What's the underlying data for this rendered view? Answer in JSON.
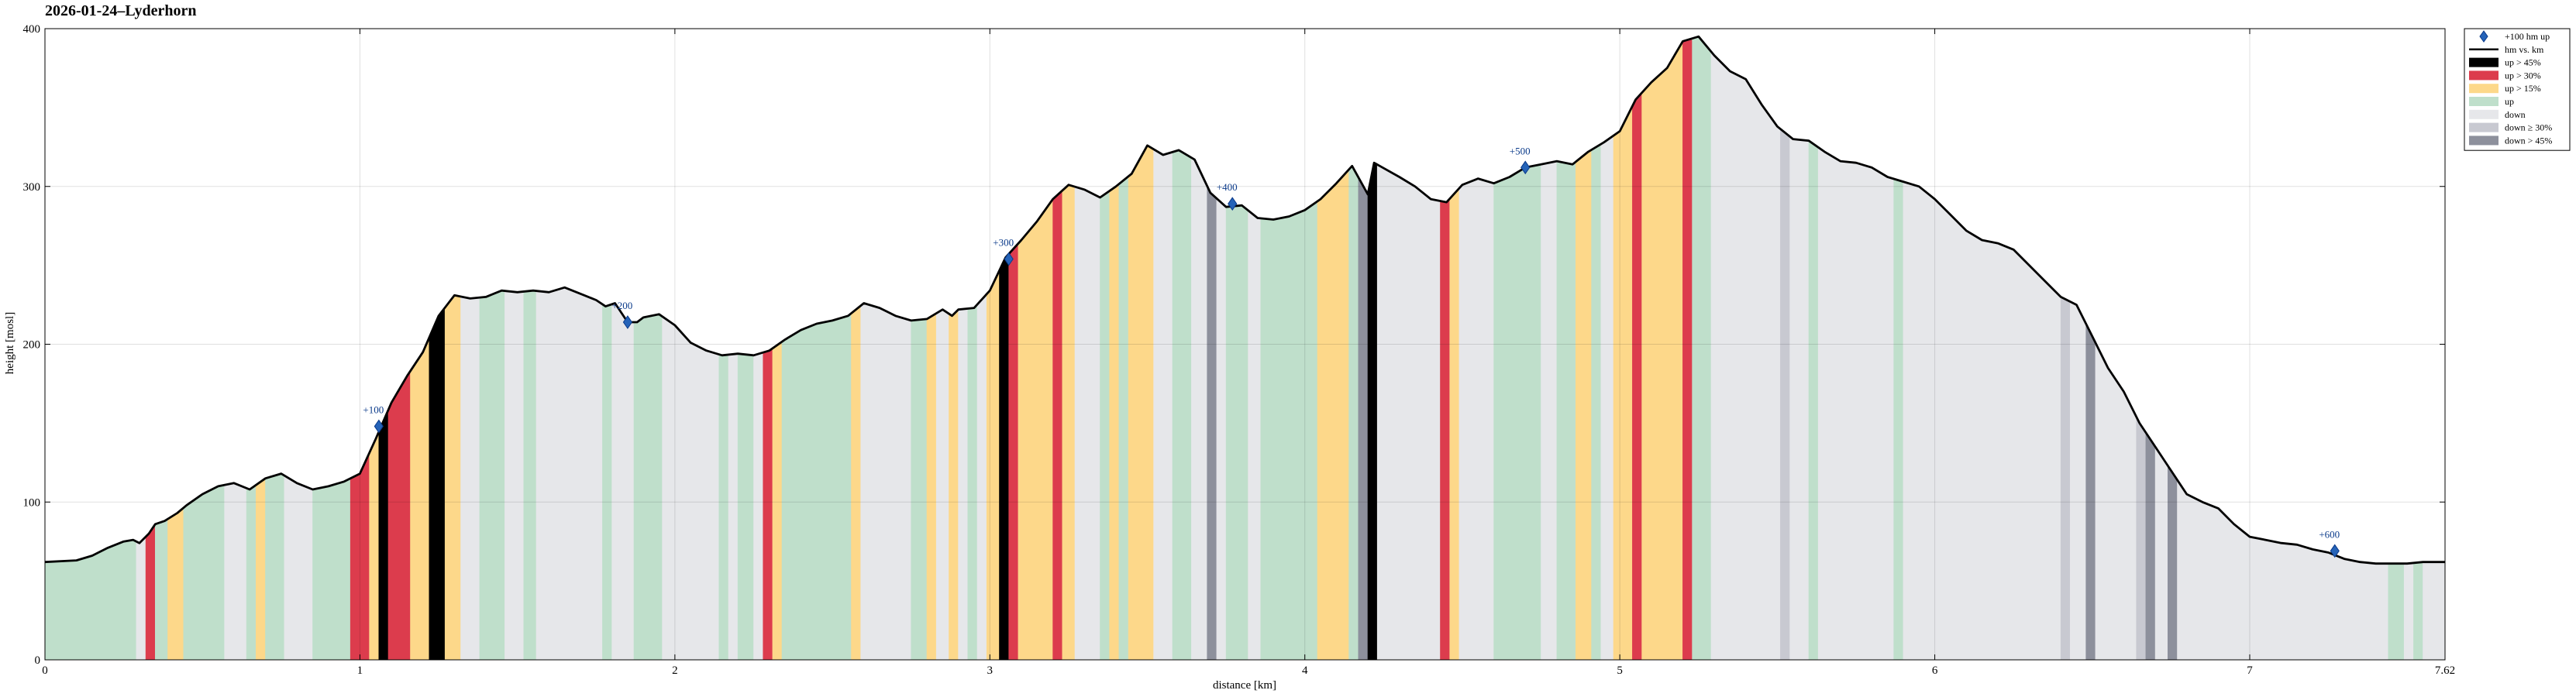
{
  "chart_data": {
    "type": "area",
    "title": "2026-01-24–Lyderhorn",
    "xlabel": "distance [km]",
    "ylabel": "height [mosl]",
    "xlim": [
      0,
      7.62
    ],
    "ylim": [
      0,
      400
    ],
    "xticks": [
      0,
      1,
      2,
      3,
      4,
      5,
      6,
      7,
      7.62
    ],
    "xtick_labels": [
      "0",
      "1",
      "2",
      "3",
      "4",
      "5",
      "6",
      "7",
      "7.62"
    ],
    "yticks": [
      0,
      100,
      200,
      300,
      400
    ],
    "ytick_labels": [
      "0",
      "100",
      "200",
      "300",
      "400"
    ],
    "grid": true,
    "legend_placement": "top-right outside",
    "legend": [
      {
        "label": "+100 hm up",
        "kind": "marker",
        "color": "#2563b8"
      },
      {
        "label": "hm vs. km",
        "kind": "line",
        "color": "#000000"
      },
      {
        "label": "up  > 45%",
        "kind": "patch",
        "color": "#000000"
      },
      {
        "label": "up  > 30%",
        "kind": "patch",
        "color": "#dc3c4d"
      },
      {
        "label": "up  > 15%",
        "kind": "patch",
        "color": "#fdd88a"
      },
      {
        "label": "up",
        "kind": "patch",
        "color": "#bfdfcb"
      },
      {
        "label": "down",
        "kind": "patch",
        "color": "#e6e7ea"
      },
      {
        "label": "down  ≥ 30%",
        "kind": "patch",
        "color": "#c8c9d1"
      },
      {
        "label": "down  > 45%",
        "kind": "patch",
        "color": "#8d909c"
      }
    ],
    "profile": [
      [
        0.0,
        62
      ],
      [
        0.1,
        63
      ],
      [
        0.15,
        66
      ],
      [
        0.2,
        71
      ],
      [
        0.25,
        75
      ],
      [
        0.28,
        76
      ],
      [
        0.3,
        74
      ],
      [
        0.33,
        80
      ],
      [
        0.35,
        86
      ],
      [
        0.38,
        88
      ],
      [
        0.42,
        93
      ],
      [
        0.45,
        98
      ],
      [
        0.5,
        105
      ],
      [
        0.55,
        110
      ],
      [
        0.6,
        112
      ],
      [
        0.65,
        108
      ],
      [
        0.7,
        115
      ],
      [
        0.75,
        118
      ],
      [
        0.8,
        112
      ],
      [
        0.85,
        108
      ],
      [
        0.9,
        110
      ],
      [
        0.95,
        113
      ],
      [
        1.0,
        118
      ],
      [
        1.05,
        140
      ],
      [
        1.1,
        163
      ],
      [
        1.15,
        180
      ],
      [
        1.2,
        195
      ],
      [
        1.25,
        218
      ],
      [
        1.3,
        231
      ],
      [
        1.35,
        229
      ],
      [
        1.4,
        230
      ],
      [
        1.45,
        234
      ],
      [
        1.5,
        233
      ],
      [
        1.55,
        234
      ],
      [
        1.6,
        233
      ],
      [
        1.65,
        236
      ],
      [
        1.7,
        232
      ],
      [
        1.75,
        228
      ],
      [
        1.78,
        224
      ],
      [
        1.81,
        226
      ],
      [
        1.85,
        214
      ],
      [
        1.88,
        214
      ],
      [
        1.9,
        217
      ],
      [
        1.95,
        219
      ],
      [
        2.0,
        212
      ],
      [
        2.05,
        201
      ],
      [
        2.1,
        196
      ],
      [
        2.15,
        193
      ],
      [
        2.2,
        194
      ],
      [
        2.25,
        193
      ],
      [
        2.3,
        196
      ],
      [
        2.35,
        203
      ],
      [
        2.4,
        209
      ],
      [
        2.45,
        213
      ],
      [
        2.5,
        215
      ],
      [
        2.55,
        218
      ],
      [
        2.6,
        226
      ],
      [
        2.65,
        223
      ],
      [
        2.7,
        218
      ],
      [
        2.75,
        215
      ],
      [
        2.8,
        216
      ],
      [
        2.85,
        222
      ],
      [
        2.88,
        218
      ],
      [
        2.9,
        222
      ],
      [
        2.95,
        223
      ],
      [
        3.0,
        234
      ],
      [
        3.05,
        255
      ],
      [
        3.1,
        266
      ],
      [
        3.15,
        278
      ],
      [
        3.2,
        292
      ],
      [
        3.25,
        301
      ],
      [
        3.3,
        298
      ],
      [
        3.35,
        293
      ],
      [
        3.4,
        300
      ],
      [
        3.45,
        308
      ],
      [
        3.5,
        326
      ],
      [
        3.55,
        320
      ],
      [
        3.6,
        323
      ],
      [
        3.65,
        317
      ],
      [
        3.7,
        296
      ],
      [
        3.75,
        287
      ],
      [
        3.8,
        288
      ],
      [
        3.85,
        280
      ],
      [
        3.9,
        279
      ],
      [
        3.95,
        281
      ],
      [
        4.0,
        285
      ],
      [
        4.05,
        292
      ],
      [
        4.1,
        302
      ],
      [
        4.15,
        313
      ],
      [
        4.2,
        295
      ],
      [
        4.22,
        315
      ],
      [
        4.3,
        306
      ],
      [
        4.35,
        300
      ],
      [
        4.4,
        292
      ],
      [
        4.45,
        290
      ],
      [
        4.5,
        301
      ],
      [
        4.55,
        305
      ],
      [
        4.6,
        302
      ],
      [
        4.65,
        306
      ],
      [
        4.7,
        312
      ],
      [
        4.75,
        314
      ],
      [
        4.8,
        316
      ],
      [
        4.85,
        314
      ],
      [
        4.9,
        322
      ],
      [
        4.95,
        328
      ],
      [
        5.0,
        335
      ],
      [
        5.05,
        355
      ],
      [
        5.1,
        366
      ],
      [
        5.15,
        375
      ],
      [
        5.2,
        392
      ],
      [
        5.25,
        395
      ],
      [
        5.3,
        383
      ],
      [
        5.35,
        373
      ],
      [
        5.4,
        368
      ],
      [
        5.45,
        352
      ],
      [
        5.5,
        338
      ],
      [
        5.55,
        330
      ],
      [
        5.6,
        329
      ],
      [
        5.65,
        322
      ],
      [
        5.7,
        316
      ],
      [
        5.75,
        315
      ],
      [
        5.8,
        312
      ],
      [
        5.85,
        306
      ],
      [
        5.9,
        303
      ],
      [
        5.95,
        300
      ],
      [
        6.0,
        292
      ],
      [
        6.05,
        282
      ],
      [
        6.1,
        272
      ],
      [
        6.15,
        266
      ],
      [
        6.2,
        264
      ],
      [
        6.25,
        260
      ],
      [
        6.3,
        250
      ],
      [
        6.35,
        240
      ],
      [
        6.4,
        230
      ],
      [
        6.45,
        225
      ],
      [
        6.5,
        205
      ],
      [
        6.55,
        185
      ],
      [
        6.6,
        170
      ],
      [
        6.65,
        150
      ],
      [
        6.7,
        135
      ],
      [
        6.75,
        120
      ],
      [
        6.8,
        105
      ],
      [
        6.85,
        100
      ],
      [
        6.9,
        96
      ],
      [
        6.95,
        86
      ],
      [
        7.0,
        78
      ],
      [
        7.05,
        76
      ],
      [
        7.1,
        74
      ],
      [
        7.15,
        73
      ],
      [
        7.2,
        70
      ],
      [
        7.25,
        68
      ],
      [
        7.3,
        64
      ],
      [
        7.35,
        62
      ],
      [
        7.4,
        61
      ],
      [
        7.45,
        61
      ],
      [
        7.5,
        61
      ],
      [
        7.55,
        62
      ],
      [
        7.62,
        62
      ]
    ],
    "bands": [
      {
        "x0": 0.0,
        "x1": 0.29,
        "cls": "up"
      },
      {
        "x0": 0.29,
        "x1": 0.32,
        "cls": "down"
      },
      {
        "x0": 0.32,
        "x1": 0.35,
        "cls": "up30"
      },
      {
        "x0": 0.35,
        "x1": 0.39,
        "cls": "up"
      },
      {
        "x0": 0.39,
        "x1": 0.44,
        "cls": "up15"
      },
      {
        "x0": 0.44,
        "x1": 0.57,
        "cls": "up"
      },
      {
        "x0": 0.57,
        "x1": 0.64,
        "cls": "down"
      },
      {
        "x0": 0.64,
        "x1": 0.67,
        "cls": "up"
      },
      {
        "x0": 0.67,
        "x1": 0.7,
        "cls": "up15"
      },
      {
        "x0": 0.7,
        "x1": 0.76,
        "cls": "up"
      },
      {
        "x0": 0.76,
        "x1": 0.85,
        "cls": "down"
      },
      {
        "x0": 0.85,
        "x1": 0.97,
        "cls": "up"
      },
      {
        "x0": 0.97,
        "x1": 1.03,
        "cls": "up30"
      },
      {
        "x0": 1.03,
        "x1": 1.06,
        "cls": "up15"
      },
      {
        "x0": 1.06,
        "x1": 1.09,
        "cls": "up45"
      },
      {
        "x0": 1.09,
        "x1": 1.16,
        "cls": "up30"
      },
      {
        "x0": 1.16,
        "x1": 1.22,
        "cls": "up15"
      },
      {
        "x0": 1.22,
        "x1": 1.27,
        "cls": "up45"
      },
      {
        "x0": 1.27,
        "x1": 1.32,
        "cls": "up15"
      },
      {
        "x0": 1.32,
        "x1": 1.38,
        "cls": "down"
      },
      {
        "x0": 1.38,
        "x1": 1.46,
        "cls": "up"
      },
      {
        "x0": 1.46,
        "x1": 1.52,
        "cls": "down"
      },
      {
        "x0": 1.52,
        "x1": 1.56,
        "cls": "up"
      },
      {
        "x0": 1.56,
        "x1": 1.77,
        "cls": "down"
      },
      {
        "x0": 1.77,
        "x1": 1.8,
        "cls": "up"
      },
      {
        "x0": 1.8,
        "x1": 1.87,
        "cls": "down"
      },
      {
        "x0": 1.87,
        "x1": 1.96,
        "cls": "up"
      },
      {
        "x0": 1.96,
        "x1": 2.14,
        "cls": "down"
      },
      {
        "x0": 2.14,
        "x1": 2.17,
        "cls": "up"
      },
      {
        "x0": 2.17,
        "x1": 2.2,
        "cls": "down"
      },
      {
        "x0": 2.2,
        "x1": 2.25,
        "cls": "up"
      },
      {
        "x0": 2.25,
        "x1": 2.28,
        "cls": "down"
      },
      {
        "x0": 2.28,
        "x1": 2.31,
        "cls": "up30"
      },
      {
        "x0": 2.31,
        "x1": 2.34,
        "cls": "up15"
      },
      {
        "x0": 2.34,
        "x1": 2.56,
        "cls": "up"
      },
      {
        "x0": 2.56,
        "x1": 2.59,
        "cls": "up15"
      },
      {
        "x0": 2.59,
        "x1": 2.75,
        "cls": "down"
      },
      {
        "x0": 2.75,
        "x1": 2.8,
        "cls": "up"
      },
      {
        "x0": 2.8,
        "x1": 2.83,
        "cls": "up15"
      },
      {
        "x0": 2.83,
        "x1": 2.87,
        "cls": "down"
      },
      {
        "x0": 2.87,
        "x1": 2.9,
        "cls": "up15"
      },
      {
        "x0": 2.9,
        "x1": 2.93,
        "cls": "down"
      },
      {
        "x0": 2.93,
        "x1": 2.96,
        "cls": "up"
      },
      {
        "x0": 2.96,
        "x1": 2.99,
        "cls": "down"
      },
      {
        "x0": 2.99,
        "x1": 3.03,
        "cls": "up15"
      },
      {
        "x0": 3.03,
        "x1": 3.06,
        "cls": "up45"
      },
      {
        "x0": 3.06,
        "x1": 3.09,
        "cls": "up30"
      },
      {
        "x0": 3.09,
        "x1": 3.2,
        "cls": "up15"
      },
      {
        "x0": 3.2,
        "x1": 3.23,
        "cls": "up30"
      },
      {
        "x0": 3.23,
        "x1": 3.27,
        "cls": "up15"
      },
      {
        "x0": 3.27,
        "x1": 3.35,
        "cls": "down"
      },
      {
        "x0": 3.35,
        "x1": 3.38,
        "cls": "up"
      },
      {
        "x0": 3.38,
        "x1": 3.41,
        "cls": "up15"
      },
      {
        "x0": 3.41,
        "x1": 3.44,
        "cls": "up"
      },
      {
        "x0": 3.44,
        "x1": 3.52,
        "cls": "up15"
      },
      {
        "x0": 3.52,
        "x1": 3.58,
        "cls": "down"
      },
      {
        "x0": 3.58,
        "x1": 3.64,
        "cls": "up"
      },
      {
        "x0": 3.64,
        "x1": 3.69,
        "cls": "down"
      },
      {
        "x0": 3.69,
        "x1": 3.72,
        "cls": "down45"
      },
      {
        "x0": 3.72,
        "x1": 3.75,
        "cls": "down"
      },
      {
        "x0": 3.75,
        "x1": 3.82,
        "cls": "up"
      },
      {
        "x0": 3.82,
        "x1": 3.86,
        "cls": "down"
      },
      {
        "x0": 3.86,
        "x1": 4.04,
        "cls": "up"
      },
      {
        "x0": 4.04,
        "x1": 4.14,
        "cls": "up15"
      },
      {
        "x0": 4.14,
        "x1": 4.17,
        "cls": "up"
      },
      {
        "x0": 4.17,
        "x1": 4.2,
        "cls": "down45"
      },
      {
        "x0": 4.2,
        "x1": 4.23,
        "cls": "up45"
      },
      {
        "x0": 4.23,
        "x1": 4.43,
        "cls": "down"
      },
      {
        "x0": 4.43,
        "x1": 4.46,
        "cls": "up30"
      },
      {
        "x0": 4.46,
        "x1": 4.49,
        "cls": "up15"
      },
      {
        "x0": 4.49,
        "x1": 4.6,
        "cls": "down"
      },
      {
        "x0": 4.6,
        "x1": 4.75,
        "cls": "up"
      },
      {
        "x0": 4.75,
        "x1": 4.8,
        "cls": "down"
      },
      {
        "x0": 4.8,
        "x1": 4.86,
        "cls": "up"
      },
      {
        "x0": 4.86,
        "x1": 4.91,
        "cls": "up15"
      },
      {
        "x0": 4.91,
        "x1": 4.94,
        "cls": "up"
      },
      {
        "x0": 4.94,
        "x1": 4.98,
        "cls": "down"
      },
      {
        "x0": 4.98,
        "x1": 5.04,
        "cls": "up15"
      },
      {
        "x0": 5.04,
        "x1": 5.07,
        "cls": "up30"
      },
      {
        "x0": 5.07,
        "x1": 5.2,
        "cls": "up15"
      },
      {
        "x0": 5.2,
        "x1": 5.23,
        "cls": "up30"
      },
      {
        "x0": 5.23,
        "x1": 5.29,
        "cls": "up"
      },
      {
        "x0": 5.29,
        "x1": 5.51,
        "cls": "down"
      },
      {
        "x0": 5.51,
        "x1": 5.54,
        "cls": "down30"
      },
      {
        "x0": 5.54,
        "x1": 5.6,
        "cls": "down"
      },
      {
        "x0": 5.6,
        "x1": 5.63,
        "cls": "up"
      },
      {
        "x0": 5.63,
        "x1": 5.87,
        "cls": "down"
      },
      {
        "x0": 5.87,
        "x1": 5.9,
        "cls": "up"
      },
      {
        "x0": 5.9,
        "x1": 6.4,
        "cls": "down"
      },
      {
        "x0": 6.4,
        "x1": 6.43,
        "cls": "down30"
      },
      {
        "x0": 6.43,
        "x1": 6.48,
        "cls": "down"
      },
      {
        "x0": 6.48,
        "x1": 6.51,
        "cls": "down45"
      },
      {
        "x0": 6.51,
        "x1": 6.64,
        "cls": "down"
      },
      {
        "x0": 6.64,
        "x1": 6.67,
        "cls": "down30"
      },
      {
        "x0": 6.67,
        "x1": 6.7,
        "cls": "down45"
      },
      {
        "x0": 6.7,
        "x1": 6.74,
        "cls": "down"
      },
      {
        "x0": 6.74,
        "x1": 6.77,
        "cls": "down45"
      },
      {
        "x0": 6.77,
        "x1": 7.44,
        "cls": "down"
      },
      {
        "x0": 7.44,
        "x1": 7.49,
        "cls": "up"
      },
      {
        "x0": 7.49,
        "x1": 7.52,
        "cls": "down"
      },
      {
        "x0": 7.52,
        "x1": 7.55,
        "cls": "up"
      },
      {
        "x0": 7.55,
        "x1": 7.62,
        "cls": "down"
      }
    ],
    "markers": [
      {
        "label": "+100",
        "x": 1.06,
        "y": 148
      },
      {
        "label": "+200",
        "x": 1.85,
        "y": 214
      },
      {
        "label": "+300",
        "x": 3.06,
        "y": 254
      },
      {
        "label": "+400",
        "x": 3.77,
        "y": 289
      },
      {
        "label": "+500",
        "x": 4.7,
        "y": 312
      },
      {
        "label": "+600",
        "x": 7.27,
        "y": 69
      }
    ],
    "colors": {
      "up45": "#000000",
      "up30": "#dc3c4d",
      "up15": "#fdd88a",
      "up": "#bfdfcb",
      "down": "#e6e7ea",
      "down30": "#c8c9d1",
      "down45": "#8d909c",
      "line": "#000000",
      "marker": "#2563b8",
      "marker_edge": "#0a3a8a"
    }
  }
}
